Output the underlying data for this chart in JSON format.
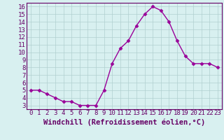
{
  "x": [
    0,
    1,
    2,
    3,
    4,
    5,
    6,
    7,
    8,
    9,
    10,
    11,
    12,
    13,
    14,
    15,
    16,
    17,
    18,
    19,
    20,
    21,
    22,
    23
  ],
  "y": [
    5.0,
    5.0,
    4.5,
    4.0,
    3.5,
    3.5,
    3.0,
    3.0,
    3.0,
    5.0,
    8.5,
    10.5,
    11.5,
    13.5,
    15.0,
    16.0,
    15.5,
    14.0,
    11.5,
    9.5,
    8.5,
    8.5,
    8.5,
    8.0
  ],
  "line_color": "#990099",
  "marker": "D",
  "marker_size": 2.5,
  "bg_color": "#d8f0f0",
  "grid_color": "#b0d0d0",
  "xlabel": "Windchill (Refroidissement éolien,°C)",
  "xlim": [
    -0.5,
    23.5
  ],
  "ylim": [
    2.5,
    16.5
  ],
  "xticks": [
    0,
    1,
    2,
    3,
    4,
    5,
    6,
    7,
    8,
    9,
    10,
    11,
    12,
    13,
    14,
    15,
    16,
    17,
    18,
    19,
    20,
    21,
    22,
    23
  ],
  "yticks": [
    3,
    4,
    5,
    6,
    7,
    8,
    9,
    10,
    11,
    12,
    13,
    14,
    15,
    16
  ],
  "tick_label_size": 6.5,
  "xlabel_size": 7.5,
  "line_width": 1.0,
  "spine_color": "#660066",
  "tick_color": "#660066",
  "xlabel_color": "#660066"
}
